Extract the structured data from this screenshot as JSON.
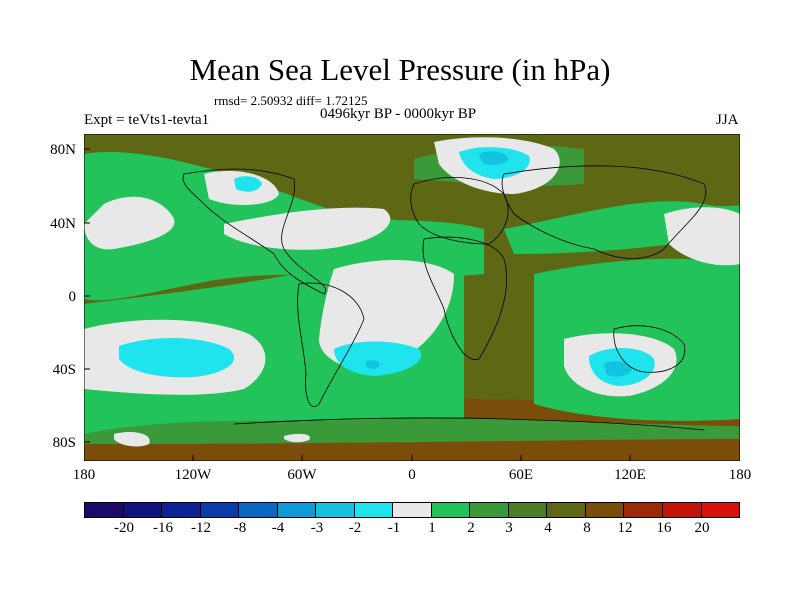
{
  "title": "Mean Sea Level Pressure (in hPa)",
  "stats": "rmsd= 2.50932 diff= 1.72125",
  "experiment": "Expt = teVts1-tevta1",
  "period": "0496kyr BP - 0000kyr BP",
  "season": "JJA",
  "map": {
    "lat_labels": [
      "80N",
      "40N",
      "0",
      "40S",
      "80S"
    ],
    "lon_labels": [
      "180",
      "120W",
      "60W",
      "0",
      "60E",
      "120E",
      "180"
    ]
  },
  "colorbar": {
    "labels": [
      "-20",
      "-16",
      "-12",
      "-8",
      "-4",
      "-3",
      "-2",
      "-1",
      "1",
      "2",
      "3",
      "4",
      "8",
      "12",
      "16",
      "20"
    ],
    "colors": [
      "#1c0a6b",
      "#10127f",
      "#0c2196",
      "#0a3ba8",
      "#0a68c4",
      "#0f99d8",
      "#13c3e0",
      "#1fe4ee",
      "#e8e8e8",
      "#22c35a",
      "#3a9a3a",
      "#4b7d22",
      "#5e6814",
      "#7a4d0a",
      "#9c2a07",
      "#c2120a",
      "#d90f0a"
    ]
  }
}
